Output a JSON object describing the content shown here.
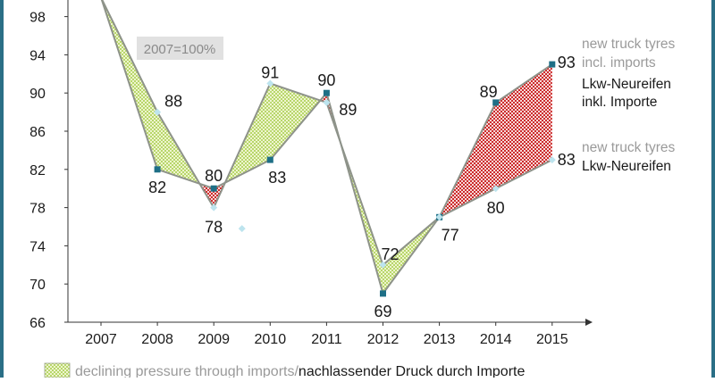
{
  "chart_data": {
    "type": "line",
    "title": "",
    "subtitle": "",
    "note": "2007=100%",
    "xlabel": "",
    "ylabel": "",
    "categories": [
      "2007",
      "2008",
      "2009",
      "2010",
      "2011",
      "2012",
      "2013",
      "2014",
      "2015"
    ],
    "yticks": [
      66,
      70,
      74,
      78,
      82,
      86,
      90,
      94,
      98
    ],
    "ylim": [
      66,
      100
    ],
    "grid": false,
    "legend_position": "right",
    "series": [
      {
        "name": "new truck tyres incl. imports",
        "name_de": "Lkw-Neureifen inkl. Importe",
        "values": [
          100,
          82,
          80,
          83,
          90,
          69,
          77,
          89,
          93
        ],
        "labeled_values": [
          null,
          "82",
          "80",
          "83",
          "90",
          "69",
          "77",
          "89",
          "93"
        ],
        "color": "#1e6f86",
        "marker": "square"
      },
      {
        "name": "new truck tyres",
        "name_de": "Lkw-Neureifen",
        "values": [
          100,
          88,
          78,
          91,
          89,
          72,
          77,
          80,
          83
        ],
        "labeled_values": [
          null,
          "88",
          "78",
          "91",
          "89",
          "72",
          null,
          "80",
          "83"
        ],
        "color": "#bde4ee",
        "marker": "diamond"
      }
    ],
    "stray_marker": {
      "x": 2009.5,
      "y": 75.8
    },
    "fills": {
      "declining_color": "#b8d66a",
      "increasing_color": "#cc2b2b"
    },
    "legend_entries": [
      {
        "label": "new truck tyres",
        "label2": "incl. imports",
        "label_de1": "Lkw-Neureifen",
        "label_de2": "inkl. Importe"
      },
      {
        "label": "new truck tyres",
        "label_de": "Lkw-Neureifen"
      }
    ],
    "bottom_legend": {
      "label_en": "declining pressure through imports",
      "separator": " / ",
      "label_de": "nachlassender Druck durch Importe"
    }
  }
}
